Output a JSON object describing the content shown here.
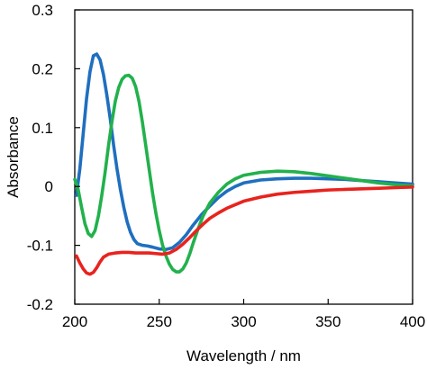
{
  "chart_data": {
    "type": "line",
    "title": "",
    "xlabel": "Wavelength / nm",
    "ylabel": "Absorbance",
    "xlim": [
      200,
      400
    ],
    "ylim": [
      -0.2,
      0.3
    ],
    "xticks": [
      200,
      250,
      300,
      350,
      400
    ],
    "yticks": [
      -0.2,
      -0.1,
      0,
      0.1,
      0.2,
      0.3
    ],
    "xtick_labels": [
      "200",
      "250",
      "300",
      "350",
      "400"
    ],
    "ytick_labels": [
      "-0.2",
      "-0.1",
      "0",
      "0.1",
      "0.2",
      "0.3"
    ],
    "grid": false,
    "legend": "none",
    "series": [
      {
        "color": "#1f6fbf",
        "points": [
          [
            201,
            -0.015
          ],
          [
            203,
            0.03
          ],
          [
            205,
            0.09
          ],
          [
            207,
            0.15
          ],
          [
            209,
            0.195
          ],
          [
            211,
            0.222
          ],
          [
            213,
            0.225
          ],
          [
            215,
            0.215
          ],
          [
            217,
            0.19
          ],
          [
            219,
            0.155
          ],
          [
            221,
            0.115
          ],
          [
            223,
            0.07
          ],
          [
            225,
            0.03
          ],
          [
            227,
            -0.005
          ],
          [
            229,
            -0.035
          ],
          [
            231,
            -0.06
          ],
          [
            233,
            -0.078
          ],
          [
            235,
            -0.09
          ],
          [
            237,
            -0.097
          ],
          [
            240,
            -0.1
          ],
          [
            243,
            -0.101
          ],
          [
            246,
            -0.103
          ],
          [
            250,
            -0.106
          ],
          [
            254,
            -0.107
          ],
          [
            258,
            -0.104
          ],
          [
            262,
            -0.095
          ],
          [
            266,
            -0.082
          ],
          [
            270,
            -0.066
          ],
          [
            275,
            -0.048
          ],
          [
            280,
            -0.033
          ],
          [
            285,
            -0.019
          ],
          [
            290,
            -0.008
          ],
          [
            295,
            0.0
          ],
          [
            300,
            0.006
          ],
          [
            310,
            0.011
          ],
          [
            320,
            0.013
          ],
          [
            330,
            0.014
          ],
          [
            340,
            0.014
          ],
          [
            350,
            0.013
          ],
          [
            360,
            0.012
          ],
          [
            370,
            0.01
          ],
          [
            380,
            0.008
          ],
          [
            390,
            0.006
          ],
          [
            400,
            0.004
          ]
        ]
      },
      {
        "color": "#22b14c",
        "points": [
          [
            200,
            0.012
          ],
          [
            202,
            -0.005
          ],
          [
            204,
            -0.035
          ],
          [
            206,
            -0.063
          ],
          [
            208,
            -0.08
          ],
          [
            210,
            -0.085
          ],
          [
            212,
            -0.075
          ],
          [
            214,
            -0.05
          ],
          [
            216,
            -0.015
          ],
          [
            218,
            0.025
          ],
          [
            220,
            0.07
          ],
          [
            222,
            0.11
          ],
          [
            224,
            0.145
          ],
          [
            226,
            0.168
          ],
          [
            228,
            0.182
          ],
          [
            230,
            0.188
          ],
          [
            232,
            0.189
          ],
          [
            234,
            0.184
          ],
          [
            236,
            0.17
          ],
          [
            238,
            0.145
          ],
          [
            240,
            0.11
          ],
          [
            242,
            0.07
          ],
          [
            244,
            0.03
          ],
          [
            246,
            -0.01
          ],
          [
            248,
            -0.045
          ],
          [
            250,
            -0.075
          ],
          [
            252,
            -0.1
          ],
          [
            254,
            -0.118
          ],
          [
            256,
            -0.132
          ],
          [
            258,
            -0.141
          ],
          [
            260,
            -0.145
          ],
          [
            262,
            -0.145
          ],
          [
            264,
            -0.14
          ],
          [
            266,
            -0.13
          ],
          [
            268,
            -0.115
          ],
          [
            270,
            -0.097
          ],
          [
            273,
            -0.072
          ],
          [
            276,
            -0.05
          ],
          [
            280,
            -0.028
          ],
          [
            285,
            -0.01
          ],
          [
            290,
            0.004
          ],
          [
            295,
            0.013
          ],
          [
            300,
            0.019
          ],
          [
            310,
            0.024
          ],
          [
            320,
            0.026
          ],
          [
            330,
            0.025
          ],
          [
            340,
            0.022
          ],
          [
            350,
            0.018
          ],
          [
            360,
            0.014
          ],
          [
            370,
            0.01
          ],
          [
            380,
            0.006
          ],
          [
            390,
            0.003
          ],
          [
            400,
            0.001
          ]
        ]
      },
      {
        "color": "#e8231e",
        "points": [
          [
            201,
            -0.118
          ],
          [
            203,
            -0.13
          ],
          [
            205,
            -0.14
          ],
          [
            207,
            -0.147
          ],
          [
            209,
            -0.149
          ],
          [
            211,
            -0.146
          ],
          [
            213,
            -0.138
          ],
          [
            215,
            -0.128
          ],
          [
            217,
            -0.12
          ],
          [
            220,
            -0.115
          ],
          [
            224,
            -0.113
          ],
          [
            228,
            -0.112
          ],
          [
            232,
            -0.112
          ],
          [
            236,
            -0.113
          ],
          [
            240,
            -0.113
          ],
          [
            244,
            -0.113
          ],
          [
            248,
            -0.114
          ],
          [
            252,
            -0.115
          ],
          [
            256,
            -0.113
          ],
          [
            260,
            -0.107
          ],
          [
            264,
            -0.098
          ],
          [
            268,
            -0.087
          ],
          [
            272,
            -0.075
          ],
          [
            276,
            -0.064
          ],
          [
            280,
            -0.054
          ],
          [
            285,
            -0.045
          ],
          [
            290,
            -0.037
          ],
          [
            295,
            -0.031
          ],
          [
            300,
            -0.025
          ],
          [
            310,
            -0.018
          ],
          [
            320,
            -0.013
          ],
          [
            330,
            -0.01
          ],
          [
            340,
            -0.008
          ],
          [
            350,
            -0.006
          ],
          [
            360,
            -0.005
          ],
          [
            370,
            -0.004
          ],
          [
            380,
            -0.003
          ],
          [
            390,
            -0.002
          ],
          [
            400,
            -0.001
          ]
        ]
      }
    ]
  }
}
